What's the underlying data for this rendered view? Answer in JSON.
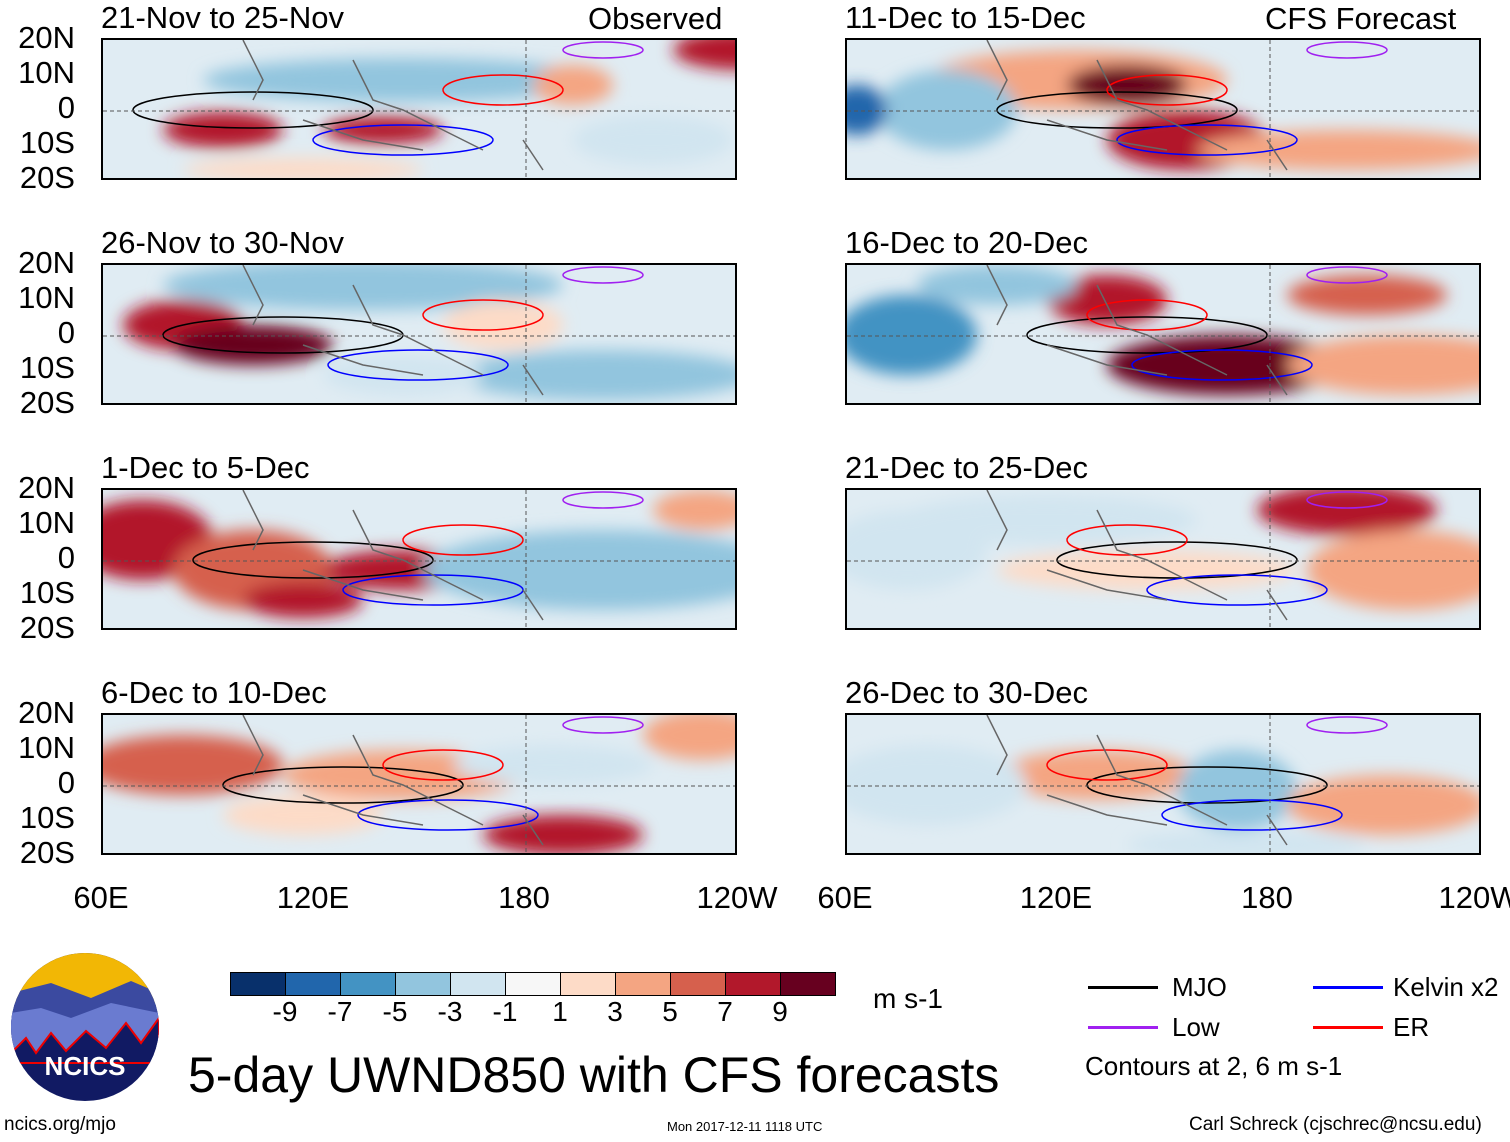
{
  "header": {
    "left_label": "Observed",
    "right_label": "CFS Forecast"
  },
  "panels_left": [
    "21-Nov to 25-Nov",
    "26-Nov to 30-Nov",
    "1-Dec to 5-Dec",
    "6-Dec to 10-Dec"
  ],
  "panels_right": [
    "11-Dec to 15-Dec",
    "16-Dec to 20-Dec",
    "21-Dec to 25-Dec",
    "26-Dec to 30-Dec"
  ],
  "lat_labels": [
    "20N",
    "10N",
    "0",
    "10S",
    "20S"
  ],
  "lon_labels": [
    "60E",
    "120E",
    "180",
    "120W"
  ],
  "colorbar": {
    "colors": [
      "#08306b",
      "#2166ac",
      "#4393c3",
      "#92c5de",
      "#d1e5f0",
      "#f7f7f7",
      "#fddbc7",
      "#f4a582",
      "#d6604d",
      "#b2182b",
      "#67001f"
    ],
    "ticks": [
      "-9",
      "-7",
      "-5",
      "-3",
      "-1",
      "1",
      "3",
      "5",
      "7",
      "9"
    ],
    "units": "m s-1"
  },
  "legend": {
    "items": [
      {
        "label": "MJO",
        "color": "#000000"
      },
      {
        "label": "Kelvin x2",
        "color": "#0000ff"
      },
      {
        "label": "Low",
        "color": "#a020f0"
      },
      {
        "label": "ER",
        "color": "#ff0000"
      }
    ],
    "note": "Contours at 2, 6 m s-1"
  },
  "title": "5-day UWND850 with CFS forecasts",
  "logo_text": "NCICS",
  "footer": {
    "url": "ncics.org/mjo",
    "timestamp": "Mon 2017-12-11 1118 UTC",
    "credit": "Carl Schreck (cjschrec@ncsu.edu)"
  }
}
